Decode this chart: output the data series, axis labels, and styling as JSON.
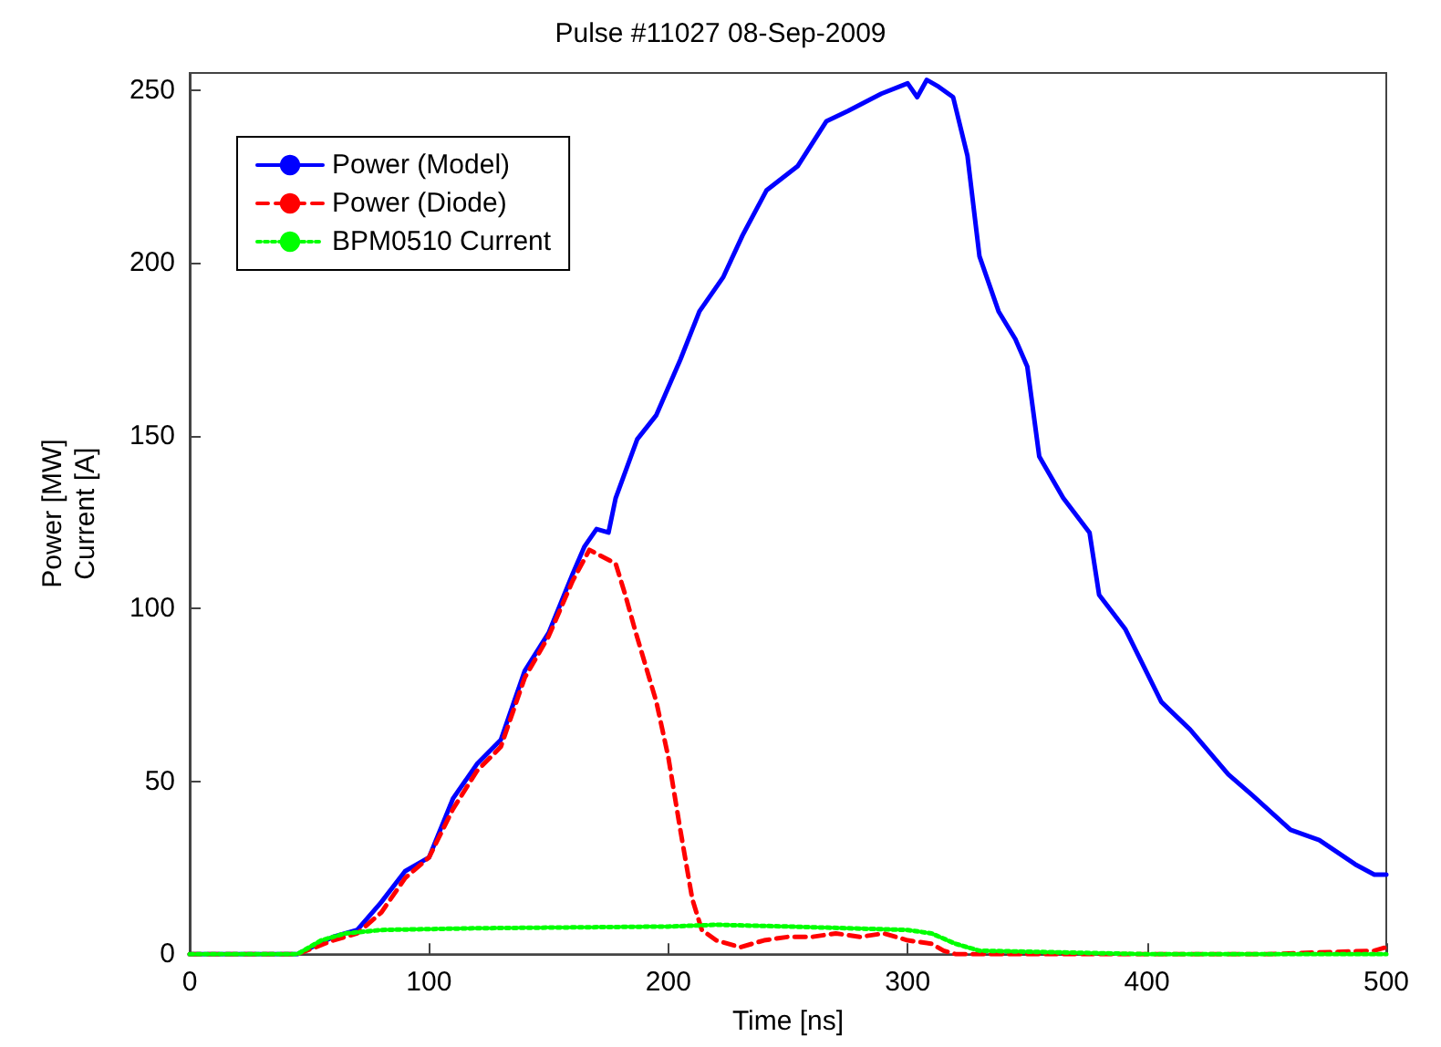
{
  "chart_data": {
    "type": "line",
    "title": "Pulse #11027 08-Sep-2009",
    "xlabel": "Time [ns]",
    "ylabel": "Power [MW]\nCurrent [A]",
    "xlim": [
      0,
      500
    ],
    "xticks": [
      0,
      100,
      200,
      300,
      400,
      500
    ],
    "ylim": [
      0,
      255
    ],
    "yticks": [
      0,
      50,
      100,
      150,
      200,
      250
    ],
    "grid": false,
    "legend": "top left",
    "marker": "none",
    "series": [
      {
        "name": "Power (Model)",
        "color": "#0000ff",
        "line_style": "solid",
        "x": [
          0,
          45,
          60,
          70,
          80,
          90,
          100,
          110,
          120,
          130,
          140,
          150,
          160,
          165,
          170,
          175,
          178,
          187,
          195,
          205,
          213,
          223,
          231,
          241,
          254,
          266,
          275,
          289,
          300,
          304,
          308,
          313,
          319,
          325,
          330,
          338,
          345,
          350,
          355,
          365,
          376,
          380,
          391,
          406,
          418,
          434,
          444,
          460,
          472,
          487,
          495,
          500
        ],
        "values": [
          0,
          0,
          5,
          7,
          15,
          24,
          28,
          45,
          55,
          62,
          82,
          93,
          110,
          118,
          123,
          122,
          132,
          149,
          156,
          172,
          186,
          196,
          208,
          221,
          228,
          241,
          244,
          249,
          252,
          248,
          253,
          251,
          248,
          231,
          202,
          186,
          178,
          170,
          144,
          132,
          122,
          104,
          94,
          73,
          65,
          52,
          46,
          36,
          33,
          26,
          23,
          23
        ]
      },
      {
        "name": "Power (Diode)",
        "color": "#ff0000",
        "line_style": "dashed",
        "x": [
          0,
          45,
          60,
          70,
          80,
          90,
          100,
          110,
          120,
          130,
          140,
          150,
          160,
          167,
          178,
          182,
          186,
          195,
          200,
          205,
          210,
          214,
          220,
          230,
          240,
          250,
          260,
          270,
          280,
          290,
          300,
          310,
          315,
          320,
          330,
          400,
          450,
          495,
          500
        ],
        "values": [
          0,
          0,
          4,
          6,
          12,
          22,
          28,
          42,
          53,
          60,
          80,
          92,
          108,
          117,
          113,
          104,
          94,
          73,
          57,
          36,
          16,
          7,
          4,
          2,
          4,
          5,
          5,
          6,
          5,
          6,
          4,
          3,
          1,
          0,
          0,
          0,
          0,
          1,
          2
        ]
      },
      {
        "name": "BPM0510 Current",
        "color": "#00ff00",
        "line_style": "dotted",
        "x": [
          0,
          45,
          55,
          65,
          80,
          120,
          200,
          220,
          250,
          300,
          310,
          320,
          330,
          400,
          500
        ],
        "values": [
          0,
          0,
          4,
          6,
          7,
          7.5,
          8,
          8.5,
          8,
          7,
          6,
          3,
          1,
          0,
          0
        ]
      }
    ]
  }
}
